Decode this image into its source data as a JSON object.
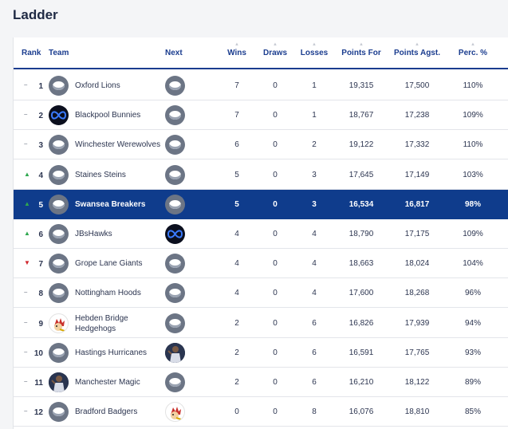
{
  "page_title": "Ladder",
  "headers": {
    "rank": "Rank",
    "team": "Team",
    "next": "Next",
    "wins": "Wins",
    "draws": "Draws",
    "losses": "Losses",
    "points_for": "Points For",
    "points_agst": "Points Agst.",
    "perc": "Perc. %"
  },
  "colors": {
    "primary": "#1b3d8f",
    "highlight_row": "#0f3c8c",
    "up": "#2fa84f",
    "down": "#d0262d"
  },
  "rows": [
    {
      "rank": "1",
      "movement": "same",
      "team": "Oxford Lions",
      "team_logo": "generic-team-icon",
      "next_logo": "generic-team-icon",
      "wins": "7",
      "draws": "0",
      "losses": "1",
      "points_for": "19,315",
      "points_agst": "17,500",
      "perc": "110%"
    },
    {
      "rank": "2",
      "movement": "same",
      "team": "Blackpool Bunnies",
      "team_logo": "infinity-logo-icon",
      "next_logo": "generic-team-icon",
      "wins": "7",
      "draws": "0",
      "losses": "1",
      "points_for": "18,767",
      "points_agst": "17,238",
      "perc": "109%"
    },
    {
      "rank": "3",
      "movement": "same",
      "team": "Winchester Werewolves",
      "team_logo": "generic-team-icon",
      "next_logo": "generic-team-icon",
      "wins": "6",
      "draws": "0",
      "losses": "2",
      "points_for": "19,122",
      "points_agst": "17,332",
      "perc": "110%"
    },
    {
      "rank": "4",
      "movement": "up",
      "team": "Staines Steins",
      "team_logo": "generic-team-icon",
      "next_logo": "generic-team-icon",
      "wins": "5",
      "draws": "0",
      "losses": "3",
      "points_for": "17,645",
      "points_agst": "17,149",
      "perc": "103%"
    },
    {
      "rank": "5",
      "movement": "up",
      "team": "Swansea Breakers",
      "team_logo": "generic-team-icon",
      "next_logo": "generic-team-icon",
      "wins": "5",
      "draws": "0",
      "losses": "3",
      "points_for": "16,534",
      "points_agst": "16,817",
      "perc": "98%",
      "highlighted": true
    },
    {
      "rank": "6",
      "movement": "up",
      "team": "JBsHawks",
      "team_logo": "generic-team-icon",
      "next_logo": "infinity-logo-icon",
      "wins": "4",
      "draws": "0",
      "losses": "4",
      "points_for": "18,790",
      "points_agst": "17,175",
      "perc": "109%"
    },
    {
      "rank": "7",
      "movement": "down",
      "team": "Grope Lane Giants",
      "team_logo": "generic-team-icon",
      "next_logo": "generic-team-icon",
      "wins": "4",
      "draws": "0",
      "losses": "4",
      "points_for": "18,663",
      "points_agst": "18,024",
      "perc": "104%"
    },
    {
      "rank": "8",
      "movement": "same",
      "team": "Nottingham Hoods",
      "team_logo": "generic-team-icon",
      "next_logo": "generic-team-icon",
      "wins": "4",
      "draws": "0",
      "losses": "4",
      "points_for": "17,600",
      "points_agst": "18,268",
      "perc": "96%"
    },
    {
      "rank": "9",
      "movement": "same",
      "team": "Hebden Bridge Hedgehogs",
      "team_line1": "Hebden Bridge",
      "team_line2": "Hedgehogs",
      "team_logo": "hedgehog-logo-icon",
      "next_logo": "generic-team-icon",
      "wins": "2",
      "draws": "0",
      "losses": "6",
      "points_for": "16,826",
      "points_agst": "17,939",
      "perc": "94%"
    },
    {
      "rank": "10",
      "movement": "same",
      "team": "Hastings Hurricanes",
      "team_logo": "generic-team-icon",
      "next_logo": "player-photo-icon",
      "wins": "2",
      "draws": "0",
      "losses": "6",
      "points_for": "16,591",
      "points_agst": "17,765",
      "perc": "93%"
    },
    {
      "rank": "11",
      "movement": "same",
      "team": "Manchester Magic",
      "team_logo": "player-photo-icon",
      "next_logo": "generic-team-icon",
      "wins": "2",
      "draws": "0",
      "losses": "6",
      "points_for": "16,210",
      "points_agst": "18,122",
      "perc": "89%"
    },
    {
      "rank": "12",
      "movement": "same",
      "team": "Bradford Badgers",
      "team_logo": "generic-team-icon",
      "next_logo": "hedgehog-logo-icon",
      "wins": "0",
      "draws": "0",
      "losses": "8",
      "points_for": "16,076",
      "points_agst": "18,810",
      "perc": "85%"
    }
  ]
}
